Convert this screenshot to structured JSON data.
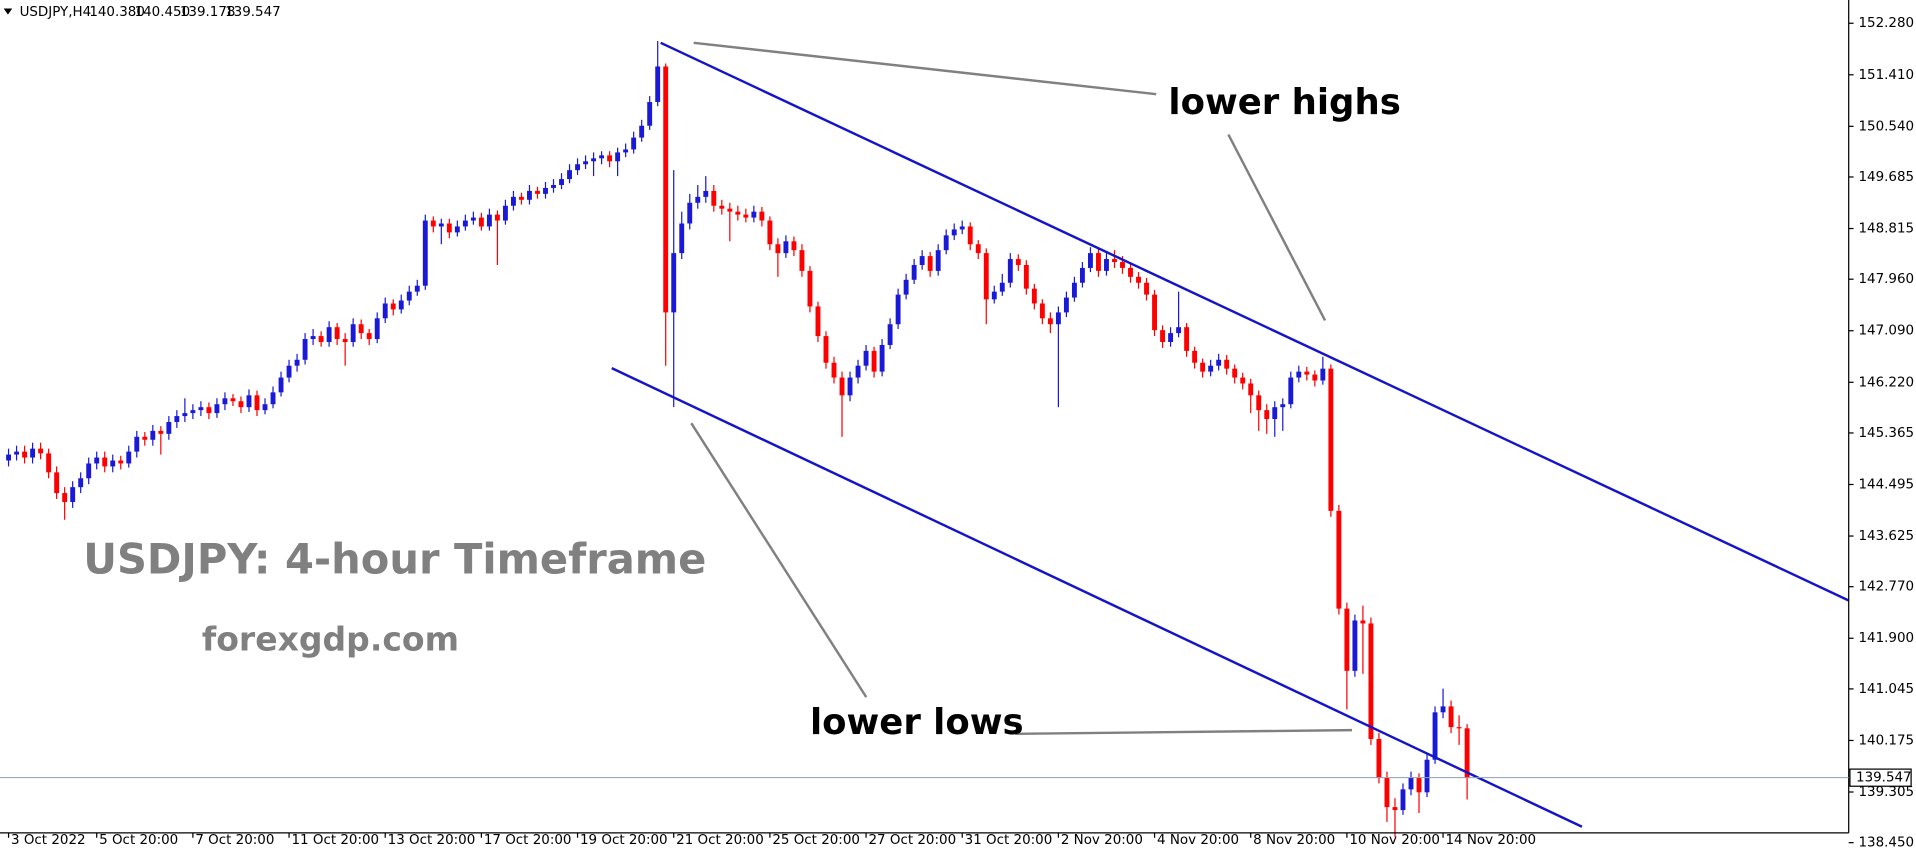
{
  "chart_data": {
    "type": "candlestick",
    "header": {
      "symbol": "USDJPY,H4",
      "ohlc_labels": [
        "140.380",
        "140.450",
        "139.178",
        "139.547"
      ]
    },
    "annotations": {
      "lower_highs": "lower highs",
      "lower_lows": "lower lows",
      "watermark_title": "USDJPY: 4-hour Timeframe",
      "watermark_site": "forexgdp.com"
    },
    "up_color": "#1a1ad6",
    "down_color": "#ff0000",
    "grid": false,
    "ylim": [
      138.45,
      152.28
    ],
    "yticks": [
      {
        "value": 152.28,
        "label": "152.280"
      },
      {
        "value": 151.41,
        "label": "151.410"
      },
      {
        "value": 150.54,
        "label": "150.540"
      },
      {
        "value": 149.685,
        "label": "149.685"
      },
      {
        "value": 148.815,
        "label": "148.815"
      },
      {
        "value": 147.96,
        "label": "147.960"
      },
      {
        "value": 147.09,
        "label": "147.090"
      },
      {
        "value": 146.22,
        "label": "146.220"
      },
      {
        "value": 145.365,
        "label": "145.365"
      },
      {
        "value": 144.495,
        "label": "144.495"
      },
      {
        "value": 143.625,
        "label": "143.625"
      },
      {
        "value": 142.77,
        "label": "142.770"
      },
      {
        "value": 141.9,
        "label": "141.900"
      },
      {
        "value": 141.045,
        "label": "141.045"
      },
      {
        "value": 140.175,
        "label": "140.175"
      },
      {
        "value": 139.305,
        "label": "139.305"
      },
      {
        "value": 138.45,
        "label": "138.450"
      }
    ],
    "last_price": {
      "value": 139.547,
      "label": "139.547"
    },
    "categories": [
      "3 Oct 2022",
      null,
      null,
      null,
      null,
      null,
      null,
      null,
      null,
      null,
      null,
      "5 Oct 20:00",
      null,
      null,
      null,
      null,
      null,
      null,
      null,
      null,
      null,
      null,
      null,
      "7 Oct 20:00",
      null,
      null,
      null,
      null,
      null,
      null,
      null,
      null,
      null,
      null,
      null,
      "11 Oct 20:00",
      null,
      null,
      null,
      null,
      null,
      null,
      null,
      null,
      null,
      null,
      null,
      "13 Oct 20:00",
      null,
      null,
      null,
      null,
      null,
      null,
      null,
      null,
      null,
      null,
      null,
      "17 Oct 20:00",
      null,
      null,
      null,
      null,
      null,
      null,
      null,
      null,
      null,
      null,
      null,
      "19 Oct 20:00",
      null,
      null,
      null,
      null,
      null,
      null,
      null,
      null,
      null,
      null,
      null,
      "21 Oct 20:00",
      null,
      null,
      null,
      null,
      null,
      null,
      null,
      null,
      null,
      null,
      null,
      "25 Oct 20:00",
      null,
      null,
      null,
      null,
      null,
      null,
      null,
      null,
      null,
      null,
      null,
      "27 Oct 20:00",
      null,
      null,
      null,
      null,
      null,
      null,
      null,
      null,
      null,
      null,
      null,
      "31 Oct 20:00",
      null,
      null,
      null,
      null,
      null,
      null,
      null,
      null,
      null,
      null,
      null,
      "2 Nov 20:00",
      null,
      null,
      null,
      null,
      null,
      null,
      null,
      null,
      null,
      null,
      null,
      "4 Nov 20:00",
      null,
      null,
      null,
      null,
      null,
      null,
      null,
      null,
      null,
      null,
      null,
      "8 Nov 20:00",
      null,
      null,
      null,
      null,
      null,
      null,
      null,
      null,
      null,
      null,
      null,
      "10 Nov 20:00",
      null,
      null,
      null,
      null,
      null,
      null,
      null,
      null,
      null,
      null,
      null,
      "14 Nov 20:00",
      null,
      null,
      null
    ],
    "ohlc": [
      [
        144.9,
        145.1,
        144.8,
        145.0
      ],
      [
        145.0,
        145.15,
        144.9,
        145.05
      ],
      [
        145.05,
        145.15,
        144.85,
        144.95
      ],
      [
        144.95,
        145.2,
        144.85,
        145.1
      ],
      [
        145.1,
        145.2,
        144.92,
        145.02
      ],
      [
        145.02,
        145.1,
        144.6,
        144.7
      ],
      [
        144.7,
        144.8,
        144.25,
        144.35
      ],
      [
        144.35,
        144.45,
        143.9,
        144.2
      ],
      [
        144.2,
        144.55,
        144.1,
        144.45
      ],
      [
        144.45,
        144.7,
        144.35,
        144.6
      ],
      [
        144.6,
        144.95,
        144.5,
        144.85
      ],
      [
        144.85,
        145.05,
        144.75,
        144.95
      ],
      [
        144.95,
        145.05,
        144.7,
        144.8
      ],
      [
        144.8,
        145.0,
        144.7,
        144.9
      ],
      [
        144.9,
        144.98,
        144.75,
        144.85
      ],
      [
        144.85,
        145.15,
        144.78,
        145.05
      ],
      [
        145.05,
        145.4,
        144.95,
        145.3
      ],
      [
        145.3,
        145.38,
        145.15,
        145.25
      ],
      [
        145.25,
        145.5,
        145.15,
        145.4
      ],
      [
        145.4,
        145.48,
        145.0,
        145.35
      ],
      [
        145.35,
        145.65,
        145.25,
        145.55
      ],
      [
        145.55,
        145.75,
        145.45,
        145.65
      ],
      [
        145.65,
        145.95,
        145.55,
        145.7
      ],
      [
        145.7,
        145.85,
        145.6,
        145.75
      ],
      [
        145.75,
        145.9,
        145.65,
        145.8
      ],
      [
        145.8,
        145.88,
        145.6,
        145.7
      ],
      [
        145.7,
        145.95,
        145.62,
        145.85
      ],
      [
        145.85,
        146.05,
        145.75,
        145.95
      ],
      [
        145.95,
        146.02,
        145.82,
        145.9
      ],
      [
        145.9,
        145.98,
        145.7,
        145.8
      ],
      [
        145.8,
        146.1,
        145.72,
        146.0
      ],
      [
        146.0,
        146.08,
        145.65,
        145.75
      ],
      [
        145.75,
        145.95,
        145.68,
        145.85
      ],
      [
        145.85,
        146.15,
        145.78,
        146.05
      ],
      [
        146.05,
        146.4,
        145.98,
        146.3
      ],
      [
        146.3,
        146.6,
        146.22,
        146.5
      ],
      [
        146.5,
        146.7,
        146.4,
        146.6
      ],
      [
        146.6,
        147.05,
        146.52,
        146.95
      ],
      [
        146.95,
        147.12,
        146.85,
        147.0
      ],
      [
        147.0,
        147.08,
        146.82,
        146.9
      ],
      [
        146.9,
        147.25,
        146.82,
        147.15
      ],
      [
        147.15,
        147.22,
        146.85,
        146.95
      ],
      [
        146.95,
        147.05,
        146.5,
        146.9
      ],
      [
        146.9,
        147.3,
        146.82,
        147.2
      ],
      [
        147.2,
        147.28,
        146.95,
        147.05
      ],
      [
        147.05,
        147.12,
        146.85,
        146.95
      ],
      [
        146.95,
        147.4,
        146.88,
        147.3
      ],
      [
        147.3,
        147.65,
        147.22,
        147.55
      ],
      [
        147.55,
        147.62,
        147.35,
        147.45
      ],
      [
        147.45,
        147.7,
        147.38,
        147.6
      ],
      [
        147.6,
        147.85,
        147.52,
        147.75
      ],
      [
        147.75,
        147.95,
        147.68,
        147.85
      ],
      [
        147.85,
        149.05,
        147.78,
        148.95
      ],
      [
        148.95,
        149.02,
        148.75,
        148.85
      ],
      [
        148.85,
        148.98,
        148.55,
        148.9
      ],
      [
        148.9,
        148.98,
        148.65,
        148.75
      ],
      [
        148.75,
        148.95,
        148.68,
        148.85
      ],
      [
        148.85,
        149.05,
        148.78,
        148.95
      ],
      [
        148.95,
        149.1,
        148.88,
        149.0
      ],
      [
        149.0,
        149.08,
        148.78,
        148.85
      ],
      [
        148.85,
        149.15,
        148.78,
        149.05
      ],
      [
        149.05,
        149.12,
        148.2,
        148.95
      ],
      [
        148.95,
        149.3,
        148.88,
        149.2
      ],
      [
        149.2,
        149.45,
        149.12,
        149.35
      ],
      [
        149.35,
        149.42,
        149.22,
        149.3
      ],
      [
        149.3,
        149.55,
        149.22,
        149.45
      ],
      [
        149.45,
        149.52,
        149.32,
        149.4
      ],
      [
        149.4,
        149.6,
        149.32,
        149.5
      ],
      [
        149.5,
        149.65,
        149.42,
        149.55
      ],
      [
        149.55,
        149.75,
        149.48,
        149.65
      ],
      [
        149.65,
        149.9,
        149.58,
        149.8
      ],
      [
        149.8,
        150.0,
        149.72,
        149.9
      ],
      [
        149.9,
        150.05,
        149.82,
        149.95
      ],
      [
        149.95,
        150.1,
        149.7,
        150.0
      ],
      [
        150.0,
        150.12,
        149.9,
        150.05
      ],
      [
        150.05,
        150.12,
        149.85,
        149.95
      ],
      [
        149.95,
        150.18,
        149.7,
        150.1
      ],
      [
        150.1,
        150.25,
        150.02,
        150.15
      ],
      [
        150.15,
        150.45,
        150.08,
        150.35
      ],
      [
        150.35,
        150.65,
        150.28,
        150.55
      ],
      [
        150.55,
        151.05,
        150.48,
        150.95
      ],
      [
        150.95,
        151.98,
        150.88,
        151.55
      ],
      [
        151.55,
        151.6,
        146.5,
        147.4
      ],
      [
        147.4,
        149.8,
        145.8,
        148.4
      ],
      [
        148.4,
        149.1,
        148.3,
        148.9
      ],
      [
        148.9,
        149.4,
        148.8,
        149.25
      ],
      [
        149.25,
        149.55,
        149.15,
        149.35
      ],
      [
        149.35,
        149.7,
        149.25,
        149.45
      ],
      [
        149.45,
        149.55,
        149.1,
        149.2
      ],
      [
        149.2,
        149.3,
        149.05,
        149.15
      ],
      [
        149.15,
        149.25,
        148.6,
        149.1
      ],
      [
        149.1,
        149.2,
        148.95,
        149.05
      ],
      [
        149.05,
        149.15,
        148.92,
        149.0
      ],
      [
        149.0,
        149.2,
        148.92,
        149.1
      ],
      [
        149.1,
        149.18,
        148.85,
        148.95
      ],
      [
        148.95,
        149.02,
        148.45,
        148.55
      ],
      [
        148.55,
        148.65,
        148.0,
        148.4
      ],
      [
        148.4,
        148.7,
        148.32,
        148.6
      ],
      [
        148.6,
        148.68,
        148.35,
        148.45
      ],
      [
        148.45,
        148.55,
        148.0,
        148.1
      ],
      [
        148.1,
        148.18,
        147.4,
        147.5
      ],
      [
        147.5,
        147.58,
        146.9,
        147.0
      ],
      [
        147.0,
        147.08,
        146.45,
        146.55
      ],
      [
        146.55,
        146.65,
        146.2,
        146.3
      ],
      [
        146.3,
        146.4,
        145.3,
        146.0
      ],
      [
        146.0,
        146.4,
        145.9,
        146.3
      ],
      [
        146.3,
        146.6,
        146.2,
        146.5
      ],
      [
        146.5,
        146.85,
        146.42,
        146.75
      ],
      [
        146.75,
        146.82,
        146.3,
        146.4
      ],
      [
        146.4,
        146.95,
        146.32,
        146.85
      ],
      [
        146.85,
        147.3,
        146.78,
        147.2
      ],
      [
        147.2,
        147.8,
        147.12,
        147.7
      ],
      [
        147.7,
        148.05,
        147.62,
        147.95
      ],
      [
        147.95,
        148.3,
        147.88,
        148.2
      ],
      [
        148.2,
        148.45,
        148.12,
        148.35
      ],
      [
        148.35,
        148.42,
        148.0,
        148.1
      ],
      [
        148.1,
        148.55,
        148.02,
        148.45
      ],
      [
        148.45,
        148.8,
        148.38,
        148.7
      ],
      [
        148.7,
        148.9,
        148.62,
        148.8
      ],
      [
        148.8,
        148.95,
        148.72,
        148.85
      ],
      [
        148.85,
        148.92,
        148.45,
        148.55
      ],
      [
        148.55,
        148.62,
        148.3,
        148.4
      ],
      [
        148.4,
        148.48,
        147.2,
        147.62
      ],
      [
        147.62,
        147.85,
        147.55,
        147.75
      ],
      [
        147.75,
        148.05,
        147.68,
        147.9
      ],
      [
        147.9,
        148.4,
        147.82,
        148.3
      ],
      [
        148.3,
        148.38,
        148.1,
        148.2
      ],
      [
        148.2,
        148.28,
        147.7,
        147.8
      ],
      [
        147.8,
        147.88,
        147.45,
        147.55
      ],
      [
        147.55,
        147.62,
        147.2,
        147.3
      ],
      [
        147.3,
        147.4,
        147.05,
        147.2
      ],
      [
        147.2,
        147.5,
        145.8,
        147.4
      ],
      [
        147.4,
        147.75,
        147.32,
        147.65
      ],
      [
        147.65,
        148.0,
        147.58,
        147.9
      ],
      [
        147.9,
        148.25,
        147.82,
        148.15
      ],
      [
        148.15,
        148.5,
        148.08,
        148.4
      ],
      [
        148.4,
        148.48,
        148.0,
        148.1
      ],
      [
        148.1,
        148.4,
        148.02,
        148.3
      ],
      [
        148.3,
        148.45,
        148.15,
        148.25
      ],
      [
        148.25,
        148.35,
        148.05,
        148.15
      ],
      [
        148.15,
        148.22,
        147.9,
        148.0
      ],
      [
        148.0,
        148.08,
        147.8,
        147.9
      ],
      [
        147.9,
        147.98,
        147.6,
        147.7
      ],
      [
        147.7,
        147.78,
        147.0,
        147.1
      ],
      [
        147.1,
        147.18,
        146.8,
        146.9
      ],
      [
        146.9,
        147.15,
        146.82,
        147.05
      ],
      [
        147.05,
        147.75,
        146.98,
        147.15
      ],
      [
        147.15,
        147.22,
        146.65,
        146.75
      ],
      [
        146.75,
        146.82,
        146.45,
        146.55
      ],
      [
        146.55,
        146.62,
        146.3,
        146.4
      ],
      [
        146.4,
        146.6,
        146.32,
        146.5
      ],
      [
        146.5,
        146.7,
        146.42,
        146.6
      ],
      [
        146.6,
        146.68,
        146.35,
        146.45
      ],
      [
        146.45,
        146.52,
        146.2,
        146.3
      ],
      [
        146.3,
        146.38,
        146.1,
        146.2
      ],
      [
        146.2,
        146.28,
        145.7,
        146.0
      ],
      [
        146.0,
        146.08,
        145.4,
        145.75
      ],
      [
        145.75,
        145.85,
        145.35,
        145.6
      ],
      [
        145.6,
        145.9,
        145.3,
        145.8
      ],
      [
        145.8,
        145.95,
        145.4,
        145.85
      ],
      [
        145.85,
        146.4,
        145.78,
        146.3
      ],
      [
        146.3,
        146.5,
        146.22,
        146.4
      ],
      [
        146.4,
        146.48,
        146.25,
        146.35
      ],
      [
        146.35,
        146.42,
        146.15,
        146.25
      ],
      [
        146.25,
        146.65,
        146.18,
        146.45
      ],
      [
        146.45,
        146.52,
        143.95,
        144.05
      ],
      [
        144.05,
        144.15,
        142.3,
        142.4
      ],
      [
        142.4,
        142.5,
        140.7,
        141.35
      ],
      [
        141.35,
        142.3,
        141.25,
        142.2
      ],
      [
        142.2,
        142.45,
        141.3,
        142.15
      ],
      [
        142.15,
        142.25,
        140.1,
        140.2
      ],
      [
        140.2,
        140.3,
        139.45,
        139.55
      ],
      [
        139.55,
        139.65,
        138.8,
        139.05
      ],
      [
        139.05,
        139.2,
        138.55,
        139.0
      ],
      [
        139.0,
        139.45,
        138.92,
        139.35
      ],
      [
        139.35,
        139.65,
        139.25,
        139.55
      ],
      [
        139.55,
        139.62,
        138.95,
        139.3
      ],
      [
        139.3,
        139.95,
        139.22,
        139.85
      ],
      [
        139.85,
        140.75,
        139.78,
        140.65
      ],
      [
        140.65,
        141.05,
        140.55,
        140.75
      ],
      [
        140.75,
        140.85,
        140.3,
        140.4
      ],
      [
        140.4,
        140.6,
        140.1,
        140.38
      ],
      [
        140.38,
        140.45,
        139.178,
        139.547
      ]
    ]
  }
}
